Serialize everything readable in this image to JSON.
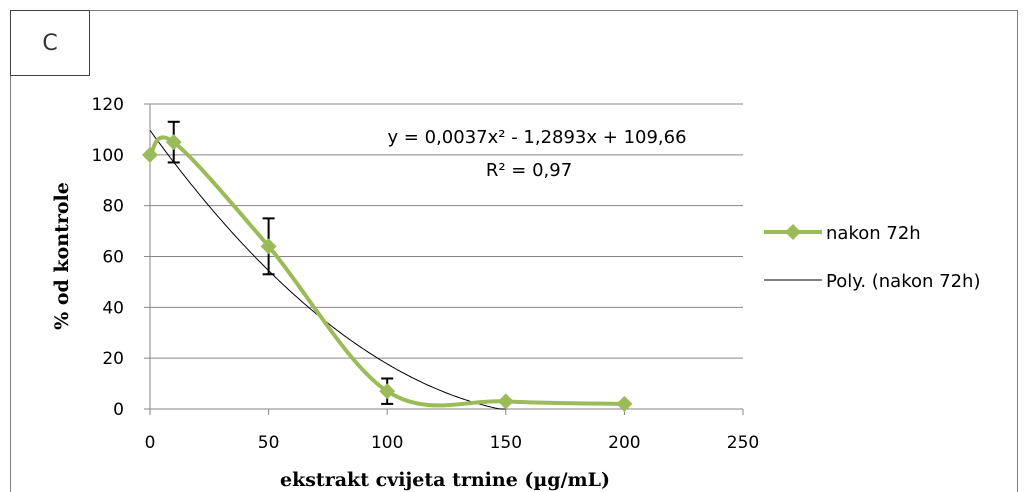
{
  "panel_label": "C",
  "chart_data": {
    "type": "line",
    "title": "",
    "xlabel": "ekstrakt cvijeta trnine (µg/mL)",
    "ylabel": "% od kontrole",
    "xlim": [
      0,
      250
    ],
    "ylim": [
      0,
      120
    ],
    "xticks": [
      0,
      50,
      100,
      150,
      200,
      250
    ],
    "yticks": [
      0,
      20,
      40,
      60,
      80,
      100,
      120
    ],
    "grid": "horizontal",
    "legend_position": "right",
    "colors": {
      "series": "#9bbb59",
      "trend": "#000000"
    },
    "series": [
      {
        "name": "nakon 72h",
        "x": [
          0,
          10,
          50,
          100,
          150,
          200
        ],
        "y": [
          100,
          105,
          64,
          7,
          3,
          2
        ],
        "error": [
          0,
          8,
          11,
          5,
          0,
          0
        ]
      }
    ],
    "trendline": {
      "name": "Poly. (nakon 72h)",
      "type": "polynomial",
      "coefficients": [
        0.0037,
        -1.2893,
        109.66
      ],
      "equation_label": "y = 0,0037x² - 1,2893x + 109,66",
      "r2_label": "R² = 0,97"
    }
  }
}
